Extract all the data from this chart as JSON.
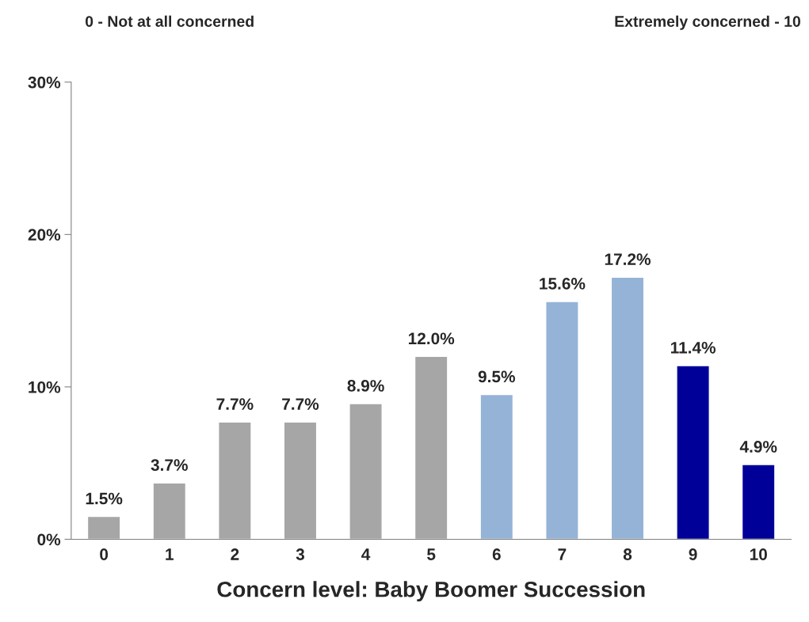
{
  "chart_data": {
    "type": "bar",
    "xlabel": "Concern level: Baby Boomer Succession",
    "annotations": [
      "0 - Not at all concerned",
      "Extremely concerned - 10"
    ],
    "categories": [
      "0",
      "1",
      "2",
      "3",
      "4",
      "5",
      "6",
      "7",
      "8",
      "9",
      "10"
    ],
    "values": [
      1.5,
      3.7,
      7.7,
      7.7,
      8.9,
      12.0,
      9.5,
      15.6,
      17.2,
      11.4,
      4.9
    ],
    "colors": [
      "#a6a6a6",
      "#a6a6a6",
      "#a6a6a6",
      "#a6a6a6",
      "#a6a6a6",
      "#a6a6a6",
      "#95b3d7",
      "#95b3d7",
      "#95b3d7",
      "#000099",
      "#000099"
    ],
    "value_labels": [
      "1.5%",
      "3.7%",
      "7.7%",
      "7.7%",
      "8.9%",
      "12.0%",
      "9.5%",
      "15.6%",
      "17.2%",
      "11.4%",
      "4.9%"
    ],
    "ylim": [
      0,
      30
    ],
    "yticks": [
      {
        "value": 0,
        "label": "0%"
      },
      {
        "value": 10,
        "label": "10%"
      },
      {
        "value": 20,
        "label": "20%"
      },
      {
        "value": 30,
        "label": "30%"
      }
    ],
    "grid": false,
    "legend": false
  }
}
